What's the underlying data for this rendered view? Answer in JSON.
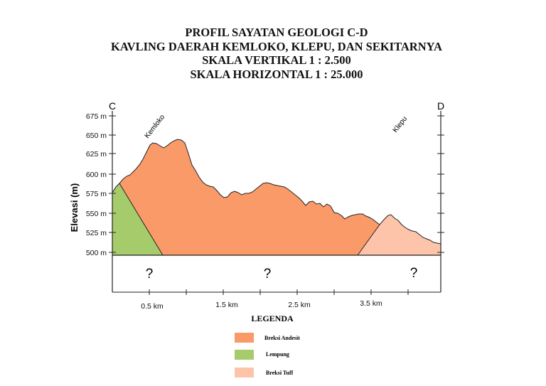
{
  "title": {
    "lines": [
      "PROFIL SAYATAN GEOLOGI C-D",
      "KAVLING DAERAH KEMLOKO, KLEPU, DAN SEKITARNYA",
      "SKALA VERTIKAL 1 : 2.500",
      "SKALA HORIZONTAL 1 : 25.000"
    ]
  },
  "section": {
    "left_endpoint": "C",
    "right_endpoint": "D",
    "ylabel": "Elevasi (m)",
    "y_ticks": [
      "675 m",
      "650 m",
      "625 m",
      "600 m",
      "575 m",
      "550 m",
      "525 m",
      "500 m"
    ],
    "x_ticks": [
      "0.5 km",
      "1.5 km",
      "2.5 km",
      "3.5 km"
    ],
    "place_labels": [
      "Kemloko",
      "Klepu"
    ],
    "unknown_marker": "?"
  },
  "legend": {
    "title": "LEGENDA",
    "items": [
      {
        "label": "Breksi Andesit",
        "color": "#fb9a69"
      },
      {
        "label": "Lempung",
        "color": "#a6cb6b"
      },
      {
        "label": "Breksi Tuff",
        "color": "#fdc4a9"
      }
    ]
  }
}
